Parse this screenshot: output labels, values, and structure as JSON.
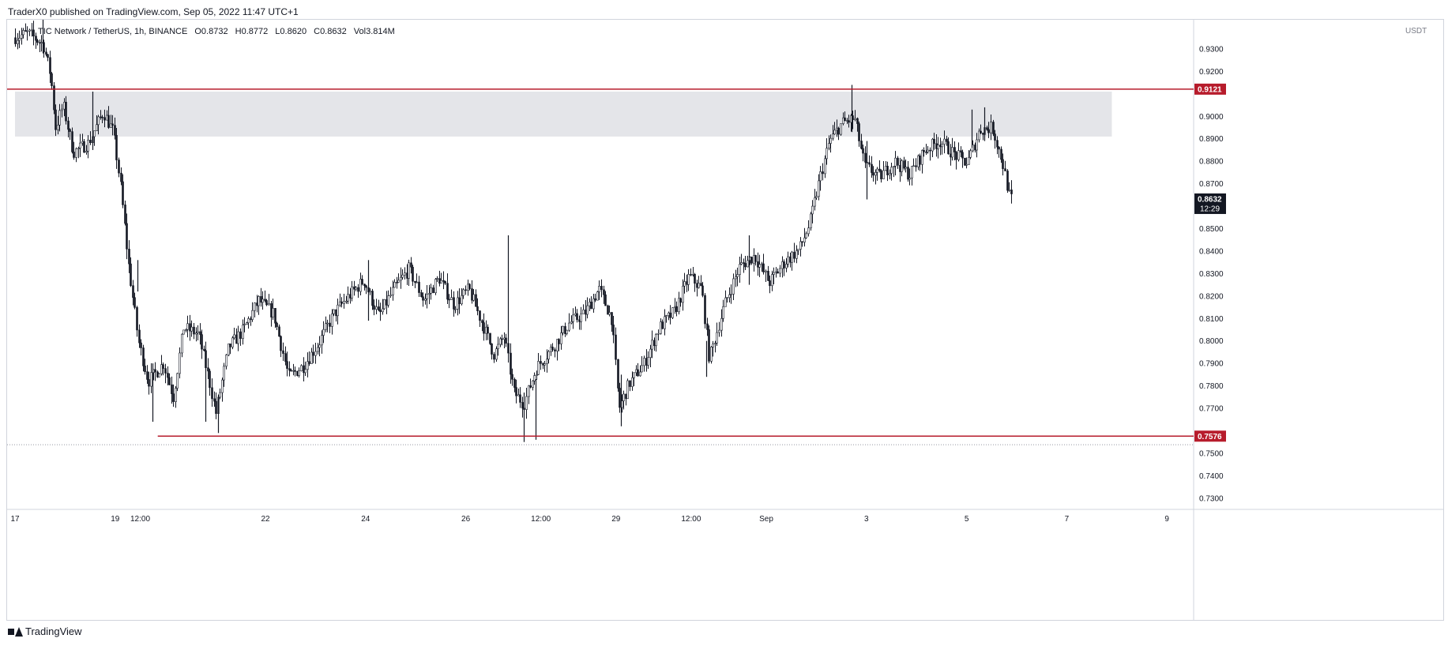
{
  "header": {
    "publisher_line": "TraderX0 published on TradingView.com, Sep 05, 2022 11:47 UTC+1"
  },
  "legend": {
    "symbol": "TIC Network / TetherUS, 1h, BINANCE",
    "open": "O0.8732",
    "high": "H0.8772",
    "low": "L0.8620",
    "close": "C0.8632",
    "volume": "Vol3.814M"
  },
  "axis": {
    "currency": "USDT"
  },
  "footer": {
    "brand": "TradingView"
  },
  "colors": {
    "candle": "#131722",
    "resistance_line": "#b71c2c",
    "zone": "#e4e5e9",
    "price_tag": "#131722",
    "grid": "#d1d4dc"
  },
  "chart_data": {
    "type": "candlestick",
    "y_range": [
      0.725,
      0.943
    ],
    "y_ticks": [
      0.93,
      0.92,
      0.9,
      0.89,
      0.88,
      0.87,
      0.85,
      0.84,
      0.83,
      0.82,
      0.81,
      0.8,
      0.79,
      0.78,
      0.77,
      0.75,
      0.74,
      0.73
    ],
    "y_tick_labels": [
      "0.9300",
      "0.9200",
      "0.9000",
      "0.8900",
      "0.8800",
      "0.8700",
      "0.8500",
      "0.8400",
      "0.8300",
      "0.8200",
      "0.8100",
      "0.8000",
      "0.7900",
      "0.7800",
      "0.7700",
      "0.7500",
      "0.7400",
      "0.7300"
    ],
    "x_range": [
      0,
      32
    ],
    "x_ticks": [
      {
        "x": 0,
        "label": "17"
      },
      {
        "x": 2,
        "label": "19"
      },
      {
        "x": 2.5,
        "label": "12:00"
      },
      {
        "x": 5,
        "label": "22"
      },
      {
        "x": 7,
        "label": "24"
      },
      {
        "x": 9,
        "label": "26"
      },
      {
        "x": 10.5,
        "label": "12:00"
      },
      {
        "x": 12,
        "label": "29"
      },
      {
        "x": 13.5,
        "label": "12:00"
      },
      {
        "x": 15,
        "label": "Sep"
      },
      {
        "x": 17,
        "label": "3"
      },
      {
        "x": 19,
        "label": "5"
      },
      {
        "x": 21,
        "label": "7"
      },
      {
        "x": 23,
        "label": "9"
      }
    ],
    "resistance_level": {
      "value": 0.9121,
      "label": "0.9121"
    },
    "support_level": {
      "value": 0.7576,
      "label": "0.7576",
      "x_start": 2.85
    },
    "dotted_level": 0.7538,
    "zone": {
      "from": 0.891,
      "to": 0.911,
      "x_start": 0,
      "x_end": 21.9
    },
    "last_price": {
      "value": 0.8632,
      "label": "0.8632",
      "countdown": "12:29"
    },
    "price_path": [
      {
        "x": 0.0,
        "p": 0.935
      },
      {
        "x": 0.3,
        "p": 0.937
      },
      {
        "x": 0.6,
        "p": 0.932
      },
      {
        "x": 0.75,
        "p": 0.918
      },
      {
        "x": 0.85,
        "p": 0.895
      },
      {
        "x": 1.0,
        "p": 0.905
      },
      {
        "x": 1.2,
        "p": 0.884
      },
      {
        "x": 1.5,
        "p": 0.888
      },
      {
        "x": 1.8,
        "p": 0.902
      },
      {
        "x": 2.0,
        "p": 0.893
      },
      {
        "x": 2.15,
        "p": 0.868
      },
      {
        "x": 2.3,
        "p": 0.835
      },
      {
        "x": 2.5,
        "p": 0.8
      },
      {
        "x": 2.7,
        "p": 0.782
      },
      {
        "x": 3.0,
        "p": 0.79
      },
      {
        "x": 3.2,
        "p": 0.775
      },
      {
        "x": 3.4,
        "p": 0.806
      },
      {
        "x": 3.7,
        "p": 0.803
      },
      {
        "x": 3.9,
        "p": 0.784
      },
      {
        "x": 4.05,
        "p": 0.768
      },
      {
        "x": 4.3,
        "p": 0.797
      },
      {
        "x": 4.6,
        "p": 0.805
      },
      {
        "x": 4.9,
        "p": 0.818
      },
      {
        "x": 5.2,
        "p": 0.812
      },
      {
        "x": 5.5,
        "p": 0.784
      },
      {
        "x": 5.8,
        "p": 0.789
      },
      {
        "x": 6.1,
        "p": 0.799
      },
      {
        "x": 6.4,
        "p": 0.812
      },
      {
        "x": 6.7,
        "p": 0.82
      },
      {
        "x": 7.0,
        "p": 0.827
      },
      {
        "x": 7.3,
        "p": 0.811
      },
      {
        "x": 7.6,
        "p": 0.823
      },
      {
        "x": 7.9,
        "p": 0.832
      },
      {
        "x": 8.2,
        "p": 0.818
      },
      {
        "x": 8.5,
        "p": 0.828
      },
      {
        "x": 8.8,
        "p": 0.816
      },
      {
        "x": 9.1,
        "p": 0.823
      },
      {
        "x": 9.4,
        "p": 0.806
      },
      {
        "x": 9.6,
        "p": 0.794
      },
      {
        "x": 9.8,
        "p": 0.802
      },
      {
        "x": 10.0,
        "p": 0.777
      },
      {
        "x": 10.2,
        "p": 0.772
      },
      {
        "x": 10.45,
        "p": 0.788
      },
      {
        "x": 10.8,
        "p": 0.798
      },
      {
        "x": 11.1,
        "p": 0.808
      },
      {
        "x": 11.4,
        "p": 0.812
      },
      {
        "x": 11.7,
        "p": 0.823
      },
      {
        "x": 11.95,
        "p": 0.81
      },
      {
        "x": 12.1,
        "p": 0.77
      },
      {
        "x": 12.3,
        "p": 0.781
      },
      {
        "x": 12.6,
        "p": 0.79
      },
      {
        "x": 12.9,
        "p": 0.806
      },
      {
        "x": 13.2,
        "p": 0.813
      },
      {
        "x": 13.5,
        "p": 0.829
      },
      {
        "x": 13.75,
        "p": 0.823
      },
      {
        "x": 13.9,
        "p": 0.792
      },
      {
        "x": 14.2,
        "p": 0.816
      },
      {
        "x": 14.5,
        "p": 0.833
      },
      {
        "x": 14.8,
        "p": 0.838
      },
      {
        "x": 15.1,
        "p": 0.826
      },
      {
        "x": 15.4,
        "p": 0.835
      },
      {
        "x": 15.7,
        "p": 0.841
      },
      {
        "x": 15.9,
        "p": 0.852
      },
      {
        "x": 16.1,
        "p": 0.872
      },
      {
        "x": 16.3,
        "p": 0.889
      },
      {
        "x": 16.55,
        "p": 0.897
      },
      {
        "x": 16.8,
        "p": 0.899
      },
      {
        "x": 17.0,
        "p": 0.878
      },
      {
        "x": 17.3,
        "p": 0.873
      },
      {
        "x": 17.6,
        "p": 0.88
      },
      {
        "x": 17.9,
        "p": 0.874
      },
      {
        "x": 18.2,
        "p": 0.885
      },
      {
        "x": 18.5,
        "p": 0.889
      },
      {
        "x": 18.8,
        "p": 0.883
      },
      {
        "x": 19.05,
        "p": 0.879
      },
      {
        "x": 19.3,
        "p": 0.894
      },
      {
        "x": 19.55,
        "p": 0.895
      },
      {
        "x": 19.75,
        "p": 0.88
      },
      {
        "x": 19.9,
        "p": 0.8632
      }
    ],
    "spikes": [
      {
        "x": 0.55,
        "high": 0.946,
        "low": 0.928
      },
      {
        "x": 1.55,
        "high": 0.911,
        "low": 0.885
      },
      {
        "x": 2.45,
        "high": 0.836,
        "low": 0.822
      },
      {
        "x": 2.75,
        "high": 0.79,
        "low": 0.764
      },
      {
        "x": 3.8,
        "high": 0.796,
        "low": 0.764
      },
      {
        "x": 4.05,
        "high": 0.776,
        "low": 0.759
      },
      {
        "x": 7.05,
        "high": 0.836,
        "low": 0.809
      },
      {
        "x": 9.85,
        "high": 0.847,
        "low": 0.8
      },
      {
        "x": 10.15,
        "high": 0.777,
        "low": 0.755
      },
      {
        "x": 10.4,
        "high": 0.783,
        "low": 0.756
      },
      {
        "x": 12.1,
        "high": 0.785,
        "low": 0.762
      },
      {
        "x": 13.8,
        "high": 0.8,
        "low": 0.784
      },
      {
        "x": 14.65,
        "high": 0.847,
        "low": 0.825
      },
      {
        "x": 16.7,
        "high": 0.914,
        "low": 0.893
      },
      {
        "x": 17.0,
        "high": 0.889,
        "low": 0.863
      },
      {
        "x": 19.1,
        "high": 0.903,
        "low": 0.886
      },
      {
        "x": 19.35,
        "high": 0.904,
        "low": 0.889
      }
    ]
  }
}
